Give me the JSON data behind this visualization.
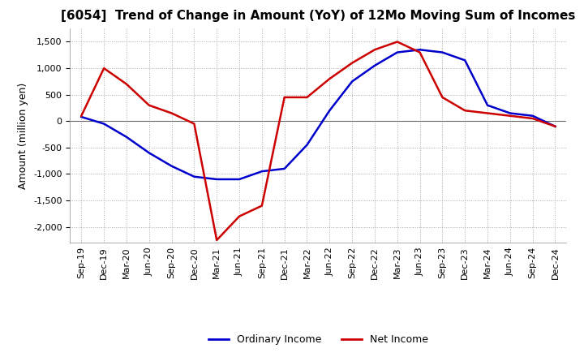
{
  "title": "[6054]  Trend of Change in Amount (YoY) of 12Mo Moving Sum of Incomes",
  "ylabel": "Amount (million yen)",
  "ylim": [
    -2300,
    1750
  ],
  "yticks": [
    -2000,
    -1500,
    -1000,
    -500,
    0,
    500,
    1000,
    1500
  ],
  "background_color": "#ffffff",
  "grid_color": "#aaaaaa",
  "x_labels": [
    "Sep-19",
    "Dec-19",
    "Mar-20",
    "Jun-20",
    "Sep-20",
    "Dec-20",
    "Mar-21",
    "Jun-21",
    "Sep-21",
    "Dec-21",
    "Mar-22",
    "Jun-22",
    "Sep-22",
    "Dec-22",
    "Mar-23",
    "Jun-23",
    "Sep-23",
    "Dec-23",
    "Mar-24",
    "Jun-24",
    "Sep-24",
    "Dec-24"
  ],
  "ordinary_income": [
    80,
    -50,
    -300,
    -600,
    -850,
    -1050,
    -1100,
    -1100,
    -950,
    -900,
    -450,
    200,
    750,
    1050,
    1300,
    1350,
    1300,
    1150,
    300,
    150,
    100,
    -100
  ],
  "net_income": [
    100,
    1000,
    700,
    300,
    150,
    -50,
    -2250,
    -1800,
    -1600,
    450,
    450,
    800,
    1100,
    1350,
    1500,
    1300,
    450,
    200,
    150,
    100,
    50,
    -100
  ],
  "ordinary_color": "#0000cc",
  "net_color": "#cc0000",
  "line_width": 1.8,
  "title_fontsize": 11,
  "tick_fontsize": 8,
  "ylabel_fontsize": 9,
  "legend_fontsize": 9
}
